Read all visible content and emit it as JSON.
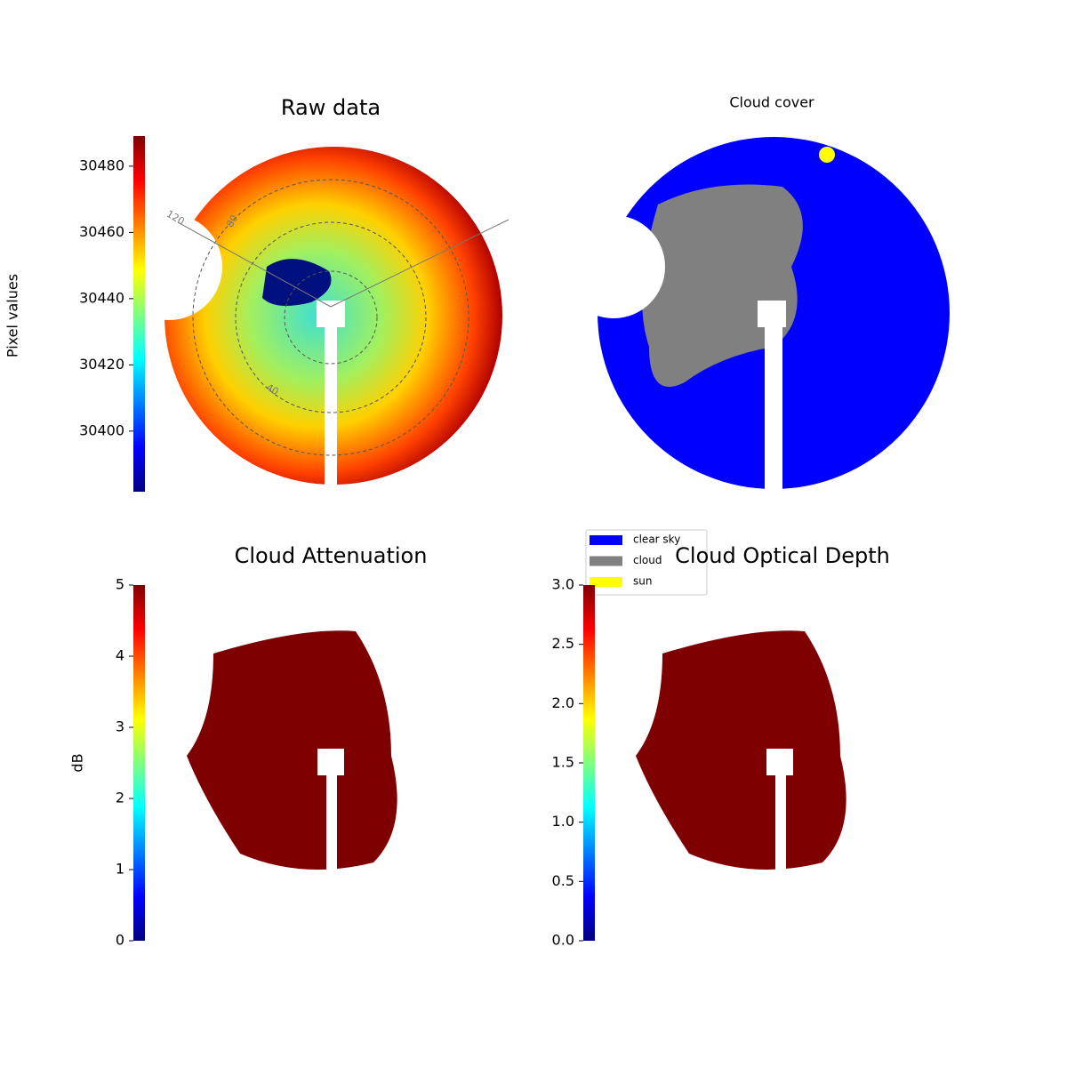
{
  "chart_data": [
    {
      "type": "image",
      "title": "Raw data",
      "colormap": "jet",
      "colorbar": {
        "label": "Pixel values",
        "lim": [
          30381.7,
          30489.1
        ],
        "ticks": [
          30400,
          30420,
          30440,
          30460,
          30480
        ]
      },
      "polar_labels": [
        "120",
        "80",
        "40"
      ]
    },
    {
      "type": "image",
      "title": "Cloud cover",
      "legend": [
        {
          "name": "clear sky",
          "color": "#0000ff"
        },
        {
          "name": "cloud",
          "color": "#808080"
        },
        {
          "name": "sun",
          "color": "#ffff00"
        }
      ]
    },
    {
      "type": "image",
      "title": "Cloud Attenuation",
      "colormap": "jet",
      "colorbar": {
        "label": "dB",
        "lim": [
          0,
          5
        ],
        "ticks": [
          0,
          1,
          2,
          3,
          4,
          5
        ]
      }
    },
    {
      "type": "image",
      "title": "Cloud Optical Depth",
      "colormap": "jet",
      "colorbar": {
        "lim": [
          0,
          3
        ],
        "ticks": [
          {
            "value": 0,
            "label": "0.0"
          },
          0.5,
          {
            "value": 1,
            "label": "1.0"
          },
          1.5,
          {
            "value": 2,
            "label": "2.0"
          },
          2.5,
          {
            "value": 3,
            "label": "3.0"
          }
        ]
      }
    }
  ]
}
